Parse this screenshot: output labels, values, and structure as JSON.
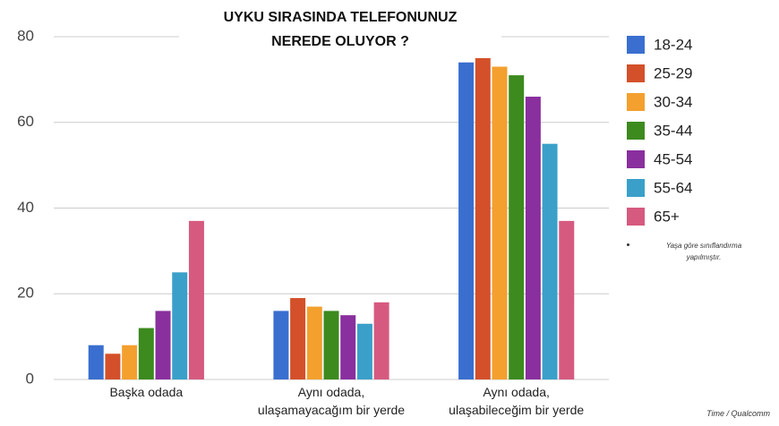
{
  "chart_data": {
    "type": "bar",
    "title": "UYKU SIRASINDA TELEFONUNUZ\nNEREDE OLUYOR ?",
    "categories": [
      "Başka odada",
      "Aynı odada,\nulaşamayacağım bir yerde",
      "Aynı odada,\nulaşabileceğim bir yerde"
    ],
    "series": [
      {
        "name": "18-24",
        "color": "#3a6fd0",
        "values": [
          8,
          16,
          74
        ]
      },
      {
        "name": "25-29",
        "color": "#d3502a",
        "values": [
          6,
          19,
          75
        ]
      },
      {
        "name": "30-34",
        "color": "#f3a02e",
        "values": [
          8,
          17,
          73
        ]
      },
      {
        "name": "35-44",
        "color": "#3d8a1f",
        "values": [
          12,
          16,
          71
        ]
      },
      {
        "name": "45-54",
        "color": "#8a2f9e",
        "values": [
          16,
          15,
          66
        ]
      },
      {
        "name": "55-64",
        "color": "#3aa0c9",
        "values": [
          25,
          13,
          55
        ]
      },
      {
        "name": "65+",
        "color": "#d65a80",
        "values": [
          37,
          18,
          37
        ]
      }
    ],
    "ylim": [
      0,
      80
    ],
    "yticks": [
      0,
      20,
      40,
      60,
      80
    ],
    "grid": true,
    "note": "Yaşa göre sınıflandırma\nyapılmıştır.",
    "source": "Time / Qualcomm"
  }
}
